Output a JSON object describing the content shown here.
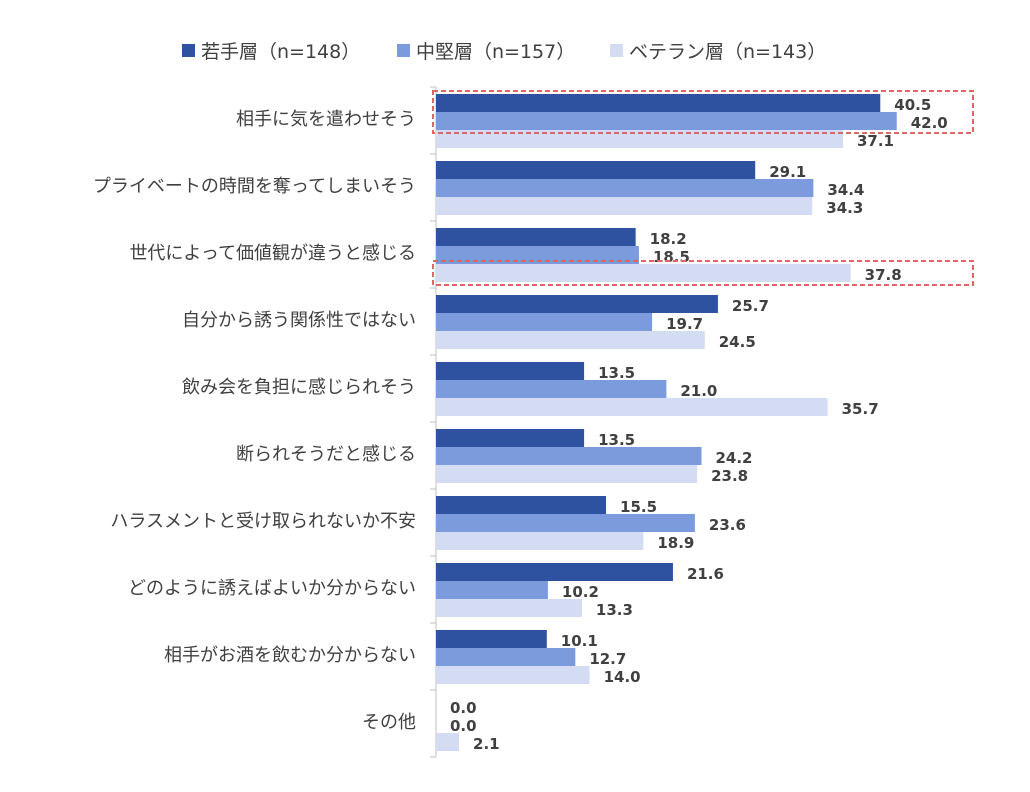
{
  "chart_data": {
    "type": "bar",
    "orientation": "horizontal",
    "title": "",
    "xlabel": "",
    "ylabel": "",
    "xlim": [
      0,
      50
    ],
    "grid": false,
    "legend_position": "top",
    "categories": [
      "相手に気を遣わせそう",
      "プライベートの時間を奪ってしまいそう",
      "世代によって価値観が違うと感じる",
      "自分から誘う関係性ではない",
      "飲み会を負担に感じられそう",
      "断られそうだと感じる",
      "ハラスメントと受け取られないか不安",
      "どのように誘えばよいか分からない",
      "相手がお酒を飲むか分からない",
      "その他"
    ],
    "series": [
      {
        "name": "若手層（n=148）",
        "color": "#2f52a0",
        "values": [
          "40.5",
          "29.1",
          "18.2",
          "25.7",
          "13.5",
          "13.5",
          "15.5",
          "21.6",
          "10.1",
          "0.0"
        ]
      },
      {
        "name": "中堅層（n=157）",
        "color": "#7b9bdc",
        "values": [
          "42.0",
          "34.4",
          "18.5",
          "19.7",
          "21.0",
          "24.2",
          "23.6",
          "10.2",
          "12.7",
          "0.0"
        ]
      },
      {
        "name": "ベテラン層（n=143）",
        "color": "#d3dcf2",
        "values": [
          "37.1",
          "34.3",
          "37.8",
          "24.5",
          "35.7",
          "23.8",
          "18.9",
          "13.3",
          "14.0",
          "2.1"
        ]
      }
    ],
    "highlights": [
      {
        "category_index": 0,
        "series_index": [
          0,
          1
        ],
        "style": "dashed-red-box"
      },
      {
        "category_index": 2,
        "series_index": [
          2
        ],
        "style": "dashed-red-box"
      }
    ]
  }
}
